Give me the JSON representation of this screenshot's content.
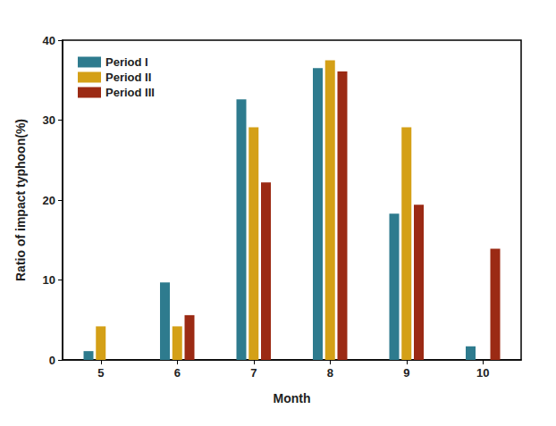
{
  "chart_data": {
    "type": "bar",
    "x_label": "Month",
    "y_label": "Ratio of impact typhoon(%)",
    "categories": [
      "5",
      "6",
      "7",
      "8",
      "9",
      "10"
    ],
    "series": [
      {
        "name": "Period I",
        "color": "#2e7b8e",
        "values": [
          1.1,
          9.7,
          32.6,
          36.5,
          18.3,
          1.7
        ]
      },
      {
        "name": "Period II",
        "color": "#d4a017",
        "values": [
          4.2,
          4.2,
          29.1,
          37.5,
          29.1,
          0
        ]
      },
      {
        "name": "Period III",
        "color": "#9b2a14",
        "values": [
          0,
          5.6,
          22.2,
          36.1,
          19.4,
          13.9
        ]
      }
    ],
    "ylim": [
      0,
      40
    ],
    "yticks": [
      0,
      10,
      20,
      30,
      40
    ],
    "grid": false,
    "legend": "upper left"
  }
}
